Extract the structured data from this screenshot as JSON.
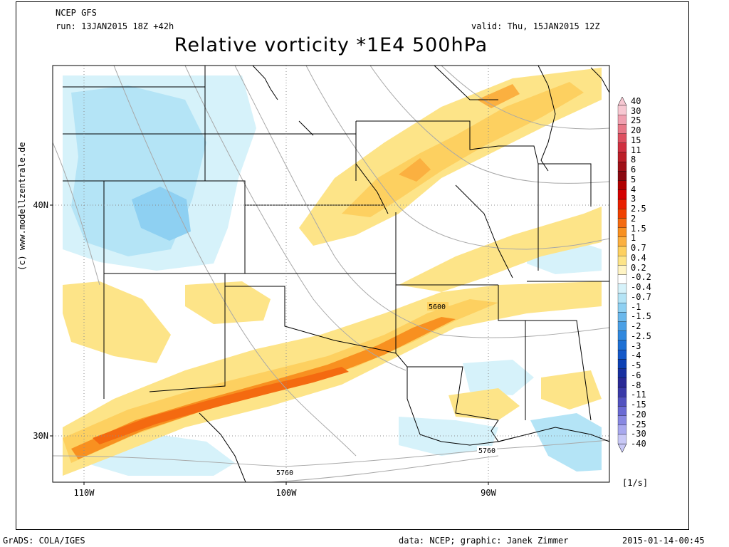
{
  "header": {
    "model": "NCEP GFS",
    "run": "run: 13JAN2015 18Z +42h",
    "valid": "valid: Thu, 15JAN2015 12Z",
    "title": "Relative vorticity *1E4 500hPa"
  },
  "map": {
    "lat_labels": [
      "40N",
      "30N"
    ],
    "lon_labels": [
      "110W",
      "100W",
      "90W"
    ],
    "contour_labels": [
      "5600",
      "5760",
      "5760"
    ]
  },
  "colorbar": {
    "labels": [
      "40",
      "30",
      "25",
      "20",
      "15",
      "11",
      "8",
      "6",
      "5",
      "4",
      "3",
      "2.5",
      "2",
      "1.5",
      "1",
      "0.7",
      "0.4",
      "0.2",
      "-0.2",
      "-0.4",
      "-0.7",
      "-1",
      "-1.5",
      "-2",
      "-2.5",
      "-3",
      "-4",
      "-5",
      "-6",
      "-8",
      "-11",
      "-15",
      "-20",
      "-25",
      "-30",
      "-40"
    ],
    "colors": [
      "#f7c8d2",
      "#f0a0b0",
      "#e87888",
      "#de5060",
      "#d03040",
      "#bc1e28",
      "#a01018",
      "#8a0810",
      "#b00000",
      "#d40000",
      "#e82000",
      "#f04000",
      "#f46a10",
      "#f89020",
      "#fbb040",
      "#fdd060",
      "#fde488",
      "#fff4c4",
      "#ffffff",
      "#d6f2fa",
      "#b4e4f6",
      "#8ed0f2",
      "#6ab8ec",
      "#4aa0e6",
      "#3088de",
      "#1e70d4",
      "#1458c8",
      "#0c40b4",
      "#1830a0",
      "#2a2a96",
      "#3a3aa8",
      "#5252c0",
      "#6a6ad4",
      "#8888e2",
      "#a8a8ee",
      "#c8c8f6"
    ],
    "units": "[1/s]"
  },
  "credit": "(c) www.modellzentrale.de",
  "footer": {
    "left": "GrADS: COLA/IGES",
    "center": "data: NCEP; graphic: Janek Zimmer",
    "right": "2015-01-14-00:45"
  }
}
